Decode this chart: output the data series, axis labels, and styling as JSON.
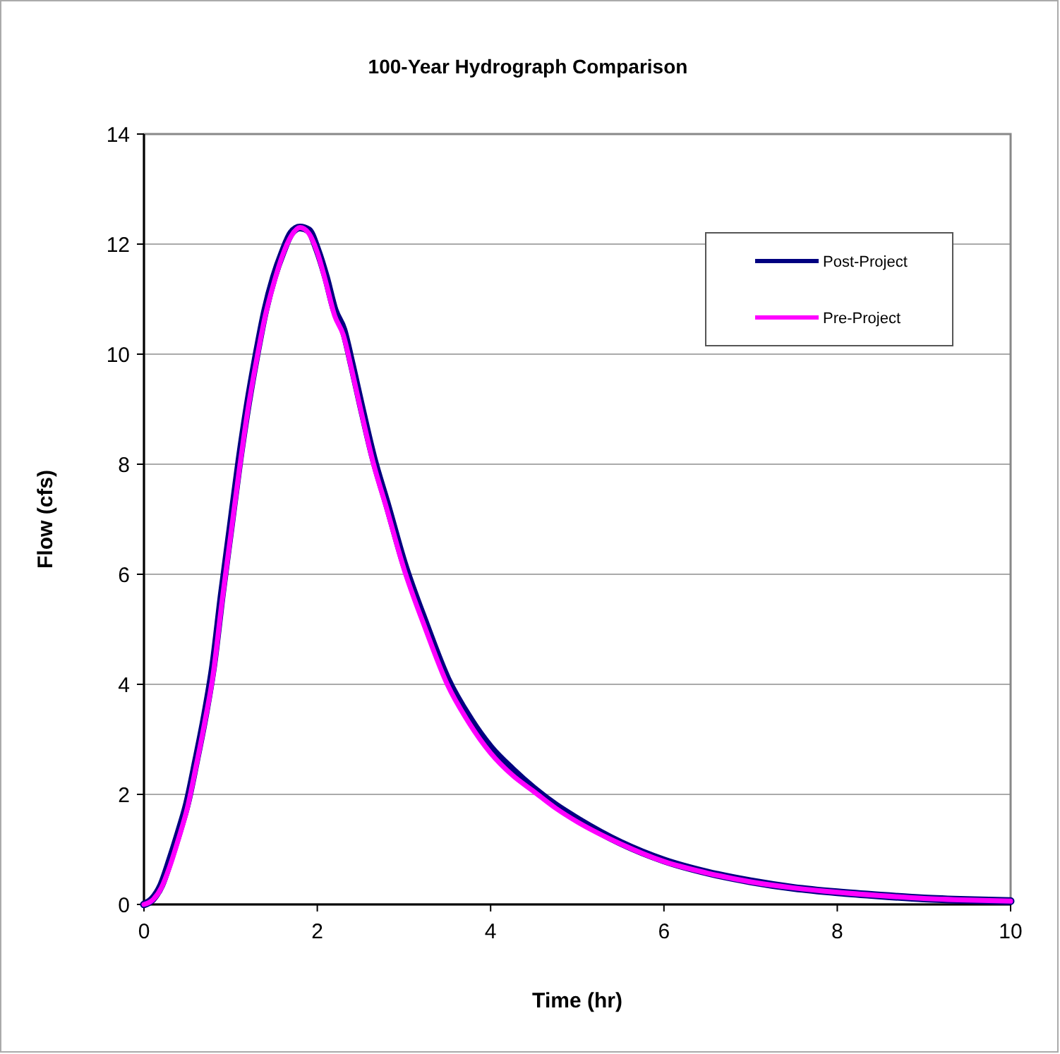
{
  "chart_data": {
    "type": "line",
    "title": "100-Year Hydrograph Comparison",
    "xlabel": "Time (hr)",
    "ylabel": "Flow (cfs)",
    "xlim": [
      0,
      10
    ],
    "xticks": [
      0,
      2,
      4,
      6,
      8,
      10
    ],
    "ylim": [
      0,
      14
    ],
    "yticks": [
      0,
      2,
      4,
      6,
      8,
      10,
      12,
      14
    ],
    "grid": "y",
    "legend": "top right",
    "marker": "none",
    "line_style": "solid",
    "series": [
      {
        "name": "Post-Project",
        "color": "#000080",
        "x": [
          0,
          0.1,
          0.2,
          0.3,
          0.4,
          0.5,
          0.6,
          0.7,
          0.8,
          0.9,
          1,
          1.1,
          1.2,
          1.3,
          1.4,
          1.5,
          1.6,
          1.7,
          1.8,
          1.9,
          2,
          2.1,
          2.2,
          2.3,
          2.4,
          2.5,
          2.65,
          2.8,
          3,
          3.25,
          3.5,
          3.75,
          4,
          4.25,
          4.5,
          4.75,
          5,
          5.5,
          6,
          6.5,
          7,
          7.5,
          8,
          8.5,
          9,
          9.5,
          10
        ],
        "values": [
          0,
          0.1,
          0.35,
          0.8,
          1.3,
          1.85,
          2.6,
          3.4,
          4.35,
          5.65,
          6.85,
          8.05,
          9.1,
          10,
          10.8,
          11.4,
          11.85,
          12.2,
          12.3,
          12.25,
          11.9,
          11.4,
          10.8,
          10.45,
          9.8,
          9.1,
          8.1,
          7.3,
          6.2,
          5.1,
          4.1,
          3.4,
          2.85,
          2.45,
          2.1,
          1.8,
          1.55,
          1.12,
          0.8,
          0.58,
          0.42,
          0.3,
          0.22,
          0.16,
          0.11,
          0.08,
          0.06
        ]
      },
      {
        "name": "Pre-Project",
        "color": "#ff00ff",
        "x": [
          0,
          0.1,
          0.2,
          0.3,
          0.4,
          0.5,
          0.6,
          0.7,
          0.8,
          0.9,
          1,
          1.1,
          1.2,
          1.3,
          1.4,
          1.5,
          1.6,
          1.7,
          1.8,
          1.9,
          2,
          2.1,
          2.2,
          2.3,
          2.4,
          2.5,
          2.65,
          2.8,
          3,
          3.25,
          3.5,
          3.75,
          4,
          4.25,
          4.5,
          4.75,
          5,
          5.5,
          6,
          6.5,
          7,
          7.5,
          8,
          8.5,
          9,
          9.5,
          10
        ],
        "values": [
          0,
          0.08,
          0.3,
          0.7,
          1.2,
          1.75,
          2.5,
          3.3,
          4.2,
          5.5,
          6.7,
          7.9,
          9,
          9.9,
          10.7,
          11.3,
          11.8,
          12.15,
          12.3,
          12.2,
          11.85,
          11.3,
          10.7,
          10.35,
          9.7,
          9,
          8,
          7.2,
          6.1,
          5,
          4,
          3.3,
          2.75,
          2.35,
          2.05,
          1.75,
          1.5,
          1.1,
          0.78,
          0.57,
          0.41,
          0.3,
          0.22,
          0.16,
          0.11,
          0.08,
          0.06
        ]
      }
    ]
  }
}
